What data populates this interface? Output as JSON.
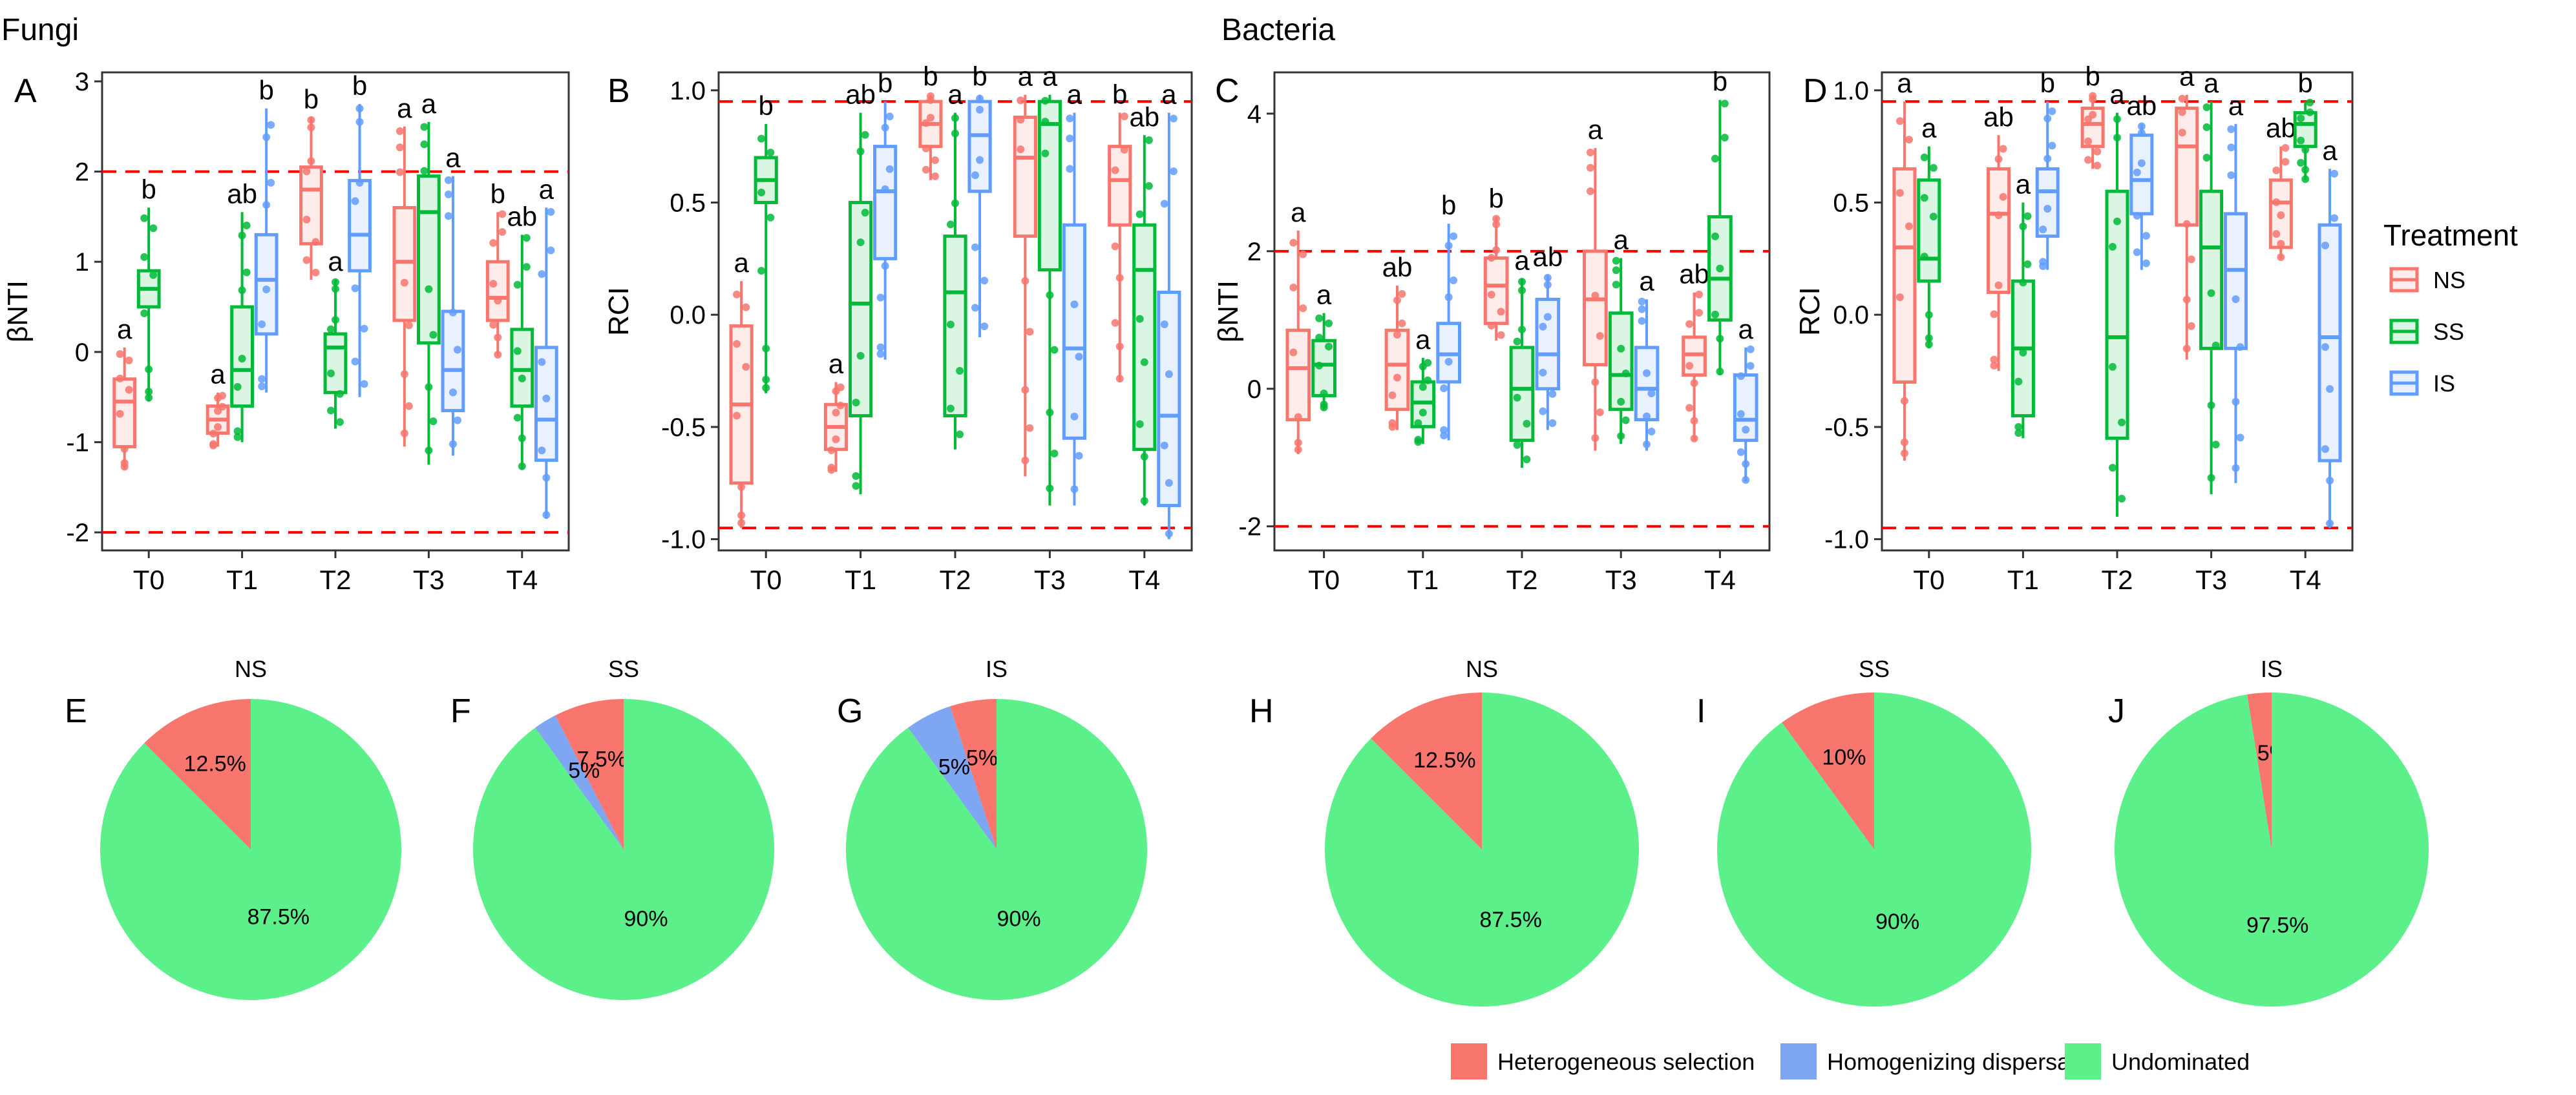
{
  "sections": {
    "fungi": "Fungi",
    "bacteria": "Bacteria"
  },
  "colors": {
    "NS": "#f8766d",
    "SS": "#00ba38",
    "IS": "#619cff",
    "ref_line": "#ff0000",
    "pie_hetero": "#f8766d",
    "pie_homo": "#7ea6f2",
    "pie_undominated": "#5cf08a"
  },
  "treatment_legend": {
    "title": "Treatment",
    "items": [
      {
        "key": "NS",
        "label": "NS"
      },
      {
        "key": "SS",
        "label": "SS"
      },
      {
        "key": "IS",
        "label": "IS"
      }
    ]
  },
  "pie_legend": [
    {
      "key": "pie_hetero",
      "label": "Heterogeneous selection"
    },
    {
      "key": "pie_homo",
      "label": "Homogenizing dispersal"
    },
    {
      "key": "pie_undominated",
      "label": "Undominated"
    }
  ],
  "chart_data": [
    {
      "panel": "A",
      "type": "box",
      "group": "Fungi",
      "ylabel": "βNTI",
      "ylim": [
        -2.2,
        3.1
      ],
      "yticks": [
        -2,
        -1,
        0,
        1,
        2,
        3
      ],
      "ytick_labels": [
        "-2",
        "-1",
        "0",
        "1",
        "2",
        "3"
      ],
      "categories": [
        "T0",
        "T1",
        "T2",
        "T3",
        "T4"
      ],
      "reference_lines": [
        2,
        -2
      ],
      "series_order": [
        "NS",
        "SS",
        "IS"
      ],
      "boxes": {
        "T0": {
          "NS": [
            -1.3,
            -1.05,
            -0.55,
            -0.3,
            0.05
          ],
          "SS": [
            -0.55,
            0.5,
            0.7,
            0.9,
            1.6
          ]
        },
        "T1": {
          "NS": [
            -1.05,
            -0.9,
            -0.75,
            -0.6,
            -0.45
          ],
          "SS": [
            -1.0,
            -0.6,
            -0.2,
            0.5,
            1.55
          ],
          "IS": [
            -0.45,
            0.2,
            0.8,
            1.3,
            2.7
          ]
        },
        "T2": {
          "NS": [
            0.8,
            1.2,
            1.8,
            2.05,
            2.6
          ],
          "SS": [
            -0.85,
            -0.45,
            0.05,
            0.2,
            0.8
          ],
          "IS": [
            -0.5,
            0.9,
            1.3,
            1.9,
            2.75
          ]
        },
        "T3": {
          "NS": [
            -1.05,
            0.35,
            1.0,
            1.6,
            2.5
          ],
          "SS": [
            -1.25,
            0.1,
            1.55,
            1.95,
            2.55
          ],
          "IS": [
            -1.15,
            -0.65,
            -0.2,
            0.45,
            1.95
          ]
        },
        "T4": {
          "NS": [
            -0.05,
            0.35,
            0.6,
            1.0,
            1.55
          ],
          "SS": [
            -1.3,
            -0.6,
            -0.2,
            0.25,
            1.3
          ],
          "IS": [
            -1.85,
            -1.2,
            -0.75,
            0.05,
            1.6
          ]
        }
      },
      "letters": {
        "T0": {
          "NS": "a",
          "SS": "b"
        },
        "T1": {
          "NS": "a",
          "SS": "ab",
          "IS": "b"
        },
        "T2": {
          "NS": "b",
          "SS": "a",
          "IS": "b"
        },
        "T3": {
          "NS": "a",
          "SS": "a",
          "IS": "a"
        },
        "T4": {
          "NS": "b",
          "SS": "ab",
          "IS": "a"
        }
      }
    },
    {
      "panel": "B",
      "type": "box",
      "group": "Fungi",
      "ylabel": "RCI",
      "ylim": [
        -1.05,
        1.08
      ],
      "yticks": [
        -1,
        -0.5,
        0,
        0.5,
        1
      ],
      "ytick_labels": [
        "-1.0",
        "-0.5",
        "0.0",
        "0.5",
        "1.0"
      ],
      "categories": [
        "T0",
        "T1",
        "T2",
        "T3",
        "T4"
      ],
      "reference_lines": [
        0.95,
        -0.95
      ],
      "series_order": [
        "NS",
        "SS",
        "IS"
      ],
      "boxes": {
        "T0": {
          "NS": [
            -0.95,
            -0.75,
            -0.4,
            -0.05,
            0.15
          ],
          "SS": [
            -0.35,
            0.5,
            0.6,
            0.7,
            0.85
          ]
        },
        "T1": {
          "NS": [
            -0.7,
            -0.6,
            -0.5,
            -0.4,
            -0.3
          ],
          "SS": [
            -0.8,
            -0.45,
            0.05,
            0.5,
            0.9
          ],
          "IS": [
            -0.2,
            0.25,
            0.55,
            0.75,
            0.95
          ]
        },
        "T2": {
          "NS": [
            0.6,
            0.75,
            0.85,
            0.95,
            0.98
          ],
          "SS": [
            -0.6,
            -0.45,
            0.1,
            0.35,
            0.9
          ],
          "IS": [
            -0.1,
            0.55,
            0.8,
            0.95,
            0.98
          ]
        },
        "T3": {
          "NS": [
            -0.72,
            0.35,
            0.7,
            0.88,
            0.98
          ],
          "SS": [
            -0.85,
            0.2,
            0.85,
            0.95,
            0.98
          ],
          "IS": [
            -0.85,
            -0.55,
            -0.15,
            0.4,
            0.9
          ]
        },
        "T4": {
          "NS": [
            -0.3,
            0.4,
            0.6,
            0.75,
            0.9
          ],
          "SS": [
            -0.85,
            -0.6,
            0.2,
            0.4,
            0.8
          ],
          "IS": [
            -1.0,
            -0.85,
            -0.45,
            0.1,
            0.9
          ]
        }
      },
      "letters": {
        "T0": {
          "NS": "a",
          "SS": "b"
        },
        "T1": {
          "NS": "a",
          "SS": "ab",
          "IS": "b"
        },
        "T2": {
          "NS": "b",
          "SS": "a",
          "IS": "b"
        },
        "T3": {
          "NS": "a",
          "SS": "a",
          "IS": "a"
        },
        "T4": {
          "NS": "b",
          "SS": "ab",
          "IS": "a"
        }
      }
    },
    {
      "panel": "C",
      "type": "box",
      "group": "Bacteria",
      "ylabel": "βNTI",
      "ylim": [
        -2.35,
        4.6
      ],
      "yticks": [
        -2,
        0,
        2,
        4
      ],
      "ytick_labels": [
        "-2",
        "0",
        "2",
        "4"
      ],
      "categories": [
        "T0",
        "T1",
        "T2",
        "T3",
        "T4"
      ],
      "reference_lines": [
        2,
        -2
      ],
      "series_order": [
        "NS",
        "SS",
        "IS"
      ],
      "boxes": {
        "T0": {
          "NS": [
            -0.95,
            -0.45,
            0.3,
            0.85,
            2.3
          ],
          "SS": [
            -0.3,
            -0.1,
            0.35,
            0.7,
            1.1
          ]
        },
        "T1": {
          "NS": [
            -0.6,
            -0.3,
            0.35,
            0.85,
            1.5
          ],
          "SS": [
            -0.8,
            -0.55,
            -0.2,
            0.1,
            0.45
          ],
          "IS": [
            -0.75,
            0.1,
            0.5,
            0.95,
            2.4
          ]
        },
        "T2": {
          "NS": [
            0.7,
            0.95,
            1.5,
            1.9,
            2.5
          ],
          "SS": [
            -1.15,
            -0.75,
            0.0,
            0.6,
            1.6
          ],
          "IS": [
            -0.6,
            0.0,
            0.5,
            1.3,
            1.65
          ]
        },
        "T3": {
          "NS": [
            -0.9,
            0.35,
            1.3,
            2.0,
            3.5
          ],
          "SS": [
            -0.8,
            -0.3,
            0.2,
            1.1,
            1.9
          ],
          "IS": [
            -0.9,
            -0.45,
            0.0,
            0.6,
            1.3
          ]
        },
        "T4": {
          "NS": [
            -0.75,
            0.2,
            0.5,
            0.75,
            1.4
          ],
          "SS": [
            0.2,
            1.0,
            1.6,
            2.5,
            4.2
          ],
          "IS": [
            -1.35,
            -0.75,
            -0.45,
            0.2,
            0.6
          ]
        }
      },
      "letters": {
        "T0": {
          "NS": "a",
          "SS": "a"
        },
        "T1": {
          "NS": "ab",
          "SS": "a",
          "IS": "b"
        },
        "T2": {
          "NS": "b",
          "SS": "a",
          "IS": "ab"
        },
        "T3": {
          "NS": "a",
          "SS": "a",
          "IS": "a"
        },
        "T4": {
          "NS": "ab",
          "SS": "b",
          "IS": "a"
        }
      }
    },
    {
      "panel": "D",
      "type": "box",
      "group": "Bacteria",
      "ylabel": "RCI",
      "ylim": [
        -1.05,
        1.08
      ],
      "yticks": [
        -1,
        -0.5,
        0,
        0.5,
        1
      ],
      "ytick_labels": [
        "-1.0",
        "-0.5",
        "0.0",
        "0.5",
        "1.0"
      ],
      "categories": [
        "T0",
        "T1",
        "T2",
        "T3",
        "T4"
      ],
      "reference_lines": [
        0.95,
        -0.95
      ],
      "series_order": [
        "NS",
        "SS",
        "IS"
      ],
      "boxes": {
        "T0": {
          "NS": [
            -0.65,
            -0.3,
            0.3,
            0.65,
            0.95
          ],
          "SS": [
            -0.15,
            0.15,
            0.25,
            0.6,
            0.75
          ]
        },
        "T1": {
          "NS": [
            -0.25,
            0.1,
            0.45,
            0.65,
            0.8
          ],
          "SS": [
            -0.55,
            -0.45,
            -0.15,
            0.15,
            0.5
          ],
          "IS": [
            0.2,
            0.35,
            0.55,
            0.65,
            0.95
          ]
        },
        "T2": {
          "NS": [
            0.65,
            0.75,
            0.85,
            0.92,
            0.98
          ],
          "SS": [
            -0.9,
            -0.55,
            -0.1,
            0.55,
            0.9
          ],
          "IS": [
            0.2,
            0.45,
            0.6,
            0.8,
            0.85
          ]
        },
        "T3": {
          "NS": [
            -0.2,
            0.4,
            0.75,
            0.92,
            0.98
          ],
          "SS": [
            -0.8,
            -0.15,
            0.3,
            0.55,
            0.95
          ],
          "IS": [
            -0.75,
            -0.15,
            0.2,
            0.45,
            0.85
          ]
        },
        "T4": {
          "NS": [
            0.25,
            0.3,
            0.5,
            0.6,
            0.75
          ],
          "SS": [
            0.6,
            0.75,
            0.85,
            0.9,
            0.95
          ],
          "IS": [
            -0.95,
            -0.65,
            -0.1,
            0.4,
            0.65
          ]
        }
      },
      "letters": {
        "T0": {
          "NS": "a",
          "SS": "a"
        },
        "T1": {
          "NS": "ab",
          "SS": "a",
          "IS": "b"
        },
        "T2": {
          "NS": "b",
          "SS": "a",
          "IS": "ab"
        },
        "T3": {
          "NS": "a",
          "SS": "a",
          "IS": "a"
        },
        "T4": {
          "NS": "ab",
          "SS": "b",
          "IS": "a"
        }
      }
    },
    {
      "panel": "E",
      "type": "pie",
      "group": "Fungi",
      "title": "NS",
      "slices": [
        {
          "key": "pie_hetero",
          "value": 12.5,
          "label": "12.5%"
        },
        {
          "key": "pie_undominated",
          "value": 87.5,
          "label": "87.5%"
        }
      ]
    },
    {
      "panel": "F",
      "type": "pie",
      "group": "Fungi",
      "title": "SS",
      "slices": [
        {
          "key": "pie_hetero",
          "value": 7.5,
          "label": "7.5%"
        },
        {
          "key": "pie_homo",
          "value": 2.5,
          "label": "2.5%"
        },
        {
          "key": "pie_undominated",
          "value": 90,
          "label": "90%"
        }
      ]
    },
    {
      "panel": "G",
      "type": "pie",
      "group": "Fungi",
      "title": "IS",
      "slices": [
        {
          "key": "pie_hetero",
          "value": 5,
          "label": "5%"
        },
        {
          "key": "pie_homo",
          "value": 5,
          "label": "5%"
        },
        {
          "key": "pie_undominated",
          "value": 90,
          "label": "90%"
        }
      ]
    },
    {
      "panel": "H",
      "type": "pie",
      "group": "Bacteria",
      "title": "NS",
      "slices": [
        {
          "key": "pie_hetero",
          "value": 12.5,
          "label": "12.5%"
        },
        {
          "key": "pie_undominated",
          "value": 87.5,
          "label": "87.5%"
        }
      ]
    },
    {
      "panel": "I",
      "type": "pie",
      "group": "Bacteria",
      "title": "SS",
      "slices": [
        {
          "key": "pie_hetero",
          "value": 10,
          "label": "10%"
        },
        {
          "key": "pie_undominated",
          "value": 90,
          "label": "90%"
        }
      ]
    },
    {
      "panel": "J",
      "type": "pie",
      "group": "Bacteria",
      "title": "IS",
      "slices": [
        {
          "key": "pie_hetero",
          "value": 2.5,
          "label": "2.5%"
        },
        {
          "key": "pie_undominated",
          "value": 97.5,
          "label": "97.5%"
        }
      ]
    }
  ]
}
